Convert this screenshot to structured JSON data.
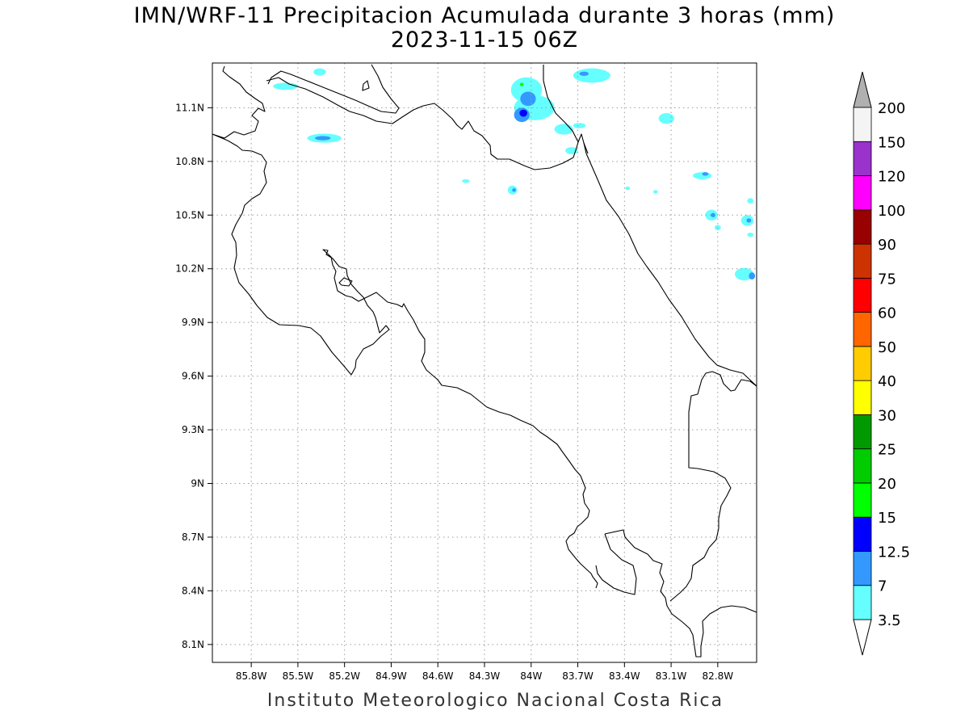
{
  "map": {
    "title_line1": "IMN/WRF-11 Precipitacion Acumulada durante 3 horas (mm)",
    "title_line2": "2023-11-15 06Z",
    "footer": "Instituto Meteorologico Nacional Costa Rica",
    "region": "Costa Rica",
    "lon_range": [
      -86.05,
      -82.55
    ],
    "lat_range": [
      8.0,
      11.35
    ],
    "gridlines": true,
    "lon_ticks": [
      {
        "value": -85.8,
        "label": "85.8W"
      },
      {
        "value": -85.5,
        "label": "85.5W"
      },
      {
        "value": -85.2,
        "label": "85.2W"
      },
      {
        "value": -84.9,
        "label": "84.9W"
      },
      {
        "value": -84.6,
        "label": "84.6W"
      },
      {
        "value": -84.3,
        "label": "84.3W"
      },
      {
        "value": -84.0,
        "label": "84W"
      },
      {
        "value": -83.7,
        "label": "83.7W"
      },
      {
        "value": -83.4,
        "label": "83.4W"
      },
      {
        "value": -83.1,
        "label": "83.1W"
      },
      {
        "value": -82.8,
        "label": "82.8W"
      }
    ],
    "lat_ticks": [
      {
        "value": 11.1,
        "label": "11.1N"
      },
      {
        "value": 10.8,
        "label": "10.8N"
      },
      {
        "value": 10.5,
        "label": "10.5N"
      },
      {
        "value": 10.2,
        "label": "10.2N"
      },
      {
        "value": 9.9,
        "label": "9.9N"
      },
      {
        "value": 9.6,
        "label": "9.6N"
      },
      {
        "value": 9.3,
        "label": "9.3N"
      },
      {
        "value": 9.0,
        "label": "9N"
      },
      {
        "value": 8.7,
        "label": "8.7N"
      },
      {
        "value": 8.4,
        "label": "8.4N"
      },
      {
        "value": 8.1,
        "label": "8.1N"
      }
    ]
  },
  "colorbar": {
    "labels": [
      "3.5",
      "7",
      "12.5",
      "15",
      "20",
      "25",
      "30",
      "40",
      "50",
      "60",
      "75",
      "90",
      "100",
      "120",
      "150",
      "200"
    ],
    "colors": [
      "#66ffff",
      "#3399ff",
      "#0000ff",
      "#00ff00",
      "#00cc00",
      "#009900",
      "#ffff00",
      "#ffcc00",
      "#ff6600",
      "#ff0000",
      "#cc3300",
      "#990000",
      "#ff00ff",
      "#9933cc",
      "#f4f4f4"
    ],
    "over_color": "#b0b0b0",
    "under_color": "#ffffff"
  },
  "precip_cells": [
    {
      "lon": -84.03,
      "lat": 11.2,
      "rx": 0.1,
      "ry": 0.07,
      "level": "3.5"
    },
    {
      "lon": -83.98,
      "lat": 11.1,
      "rx": 0.13,
      "ry": 0.07,
      "level": "3.5"
    },
    {
      "lon": -84.02,
      "lat": 11.15,
      "rx": 0.05,
      "ry": 0.04,
      "level": "7"
    },
    {
      "lon": -84.06,
      "lat": 11.06,
      "rx": 0.05,
      "ry": 0.04,
      "level": "7"
    },
    {
      "lon": -84.05,
      "lat": 11.07,
      "rx": 0.025,
      "ry": 0.02,
      "level": "12.5"
    },
    {
      "lon": -84.06,
      "lat": 11.23,
      "rx": 0.012,
      "ry": 0.01,
      "level": "15"
    },
    {
      "lon": -85.33,
      "lat": 10.93,
      "rx": 0.11,
      "ry": 0.025,
      "level": "3.5"
    },
    {
      "lon": -85.34,
      "lat": 10.93,
      "rx": 0.05,
      "ry": 0.012,
      "level": "7"
    },
    {
      "lon": -85.58,
      "lat": 11.22,
      "rx": 0.08,
      "ry": 0.02,
      "level": "3.5"
    },
    {
      "lon": -85.36,
      "lat": 11.3,
      "rx": 0.04,
      "ry": 0.02,
      "level": "3.5"
    },
    {
      "lon": -83.61,
      "lat": 11.28,
      "rx": 0.12,
      "ry": 0.04,
      "level": "3.5"
    },
    {
      "lon": -83.66,
      "lat": 11.29,
      "rx": 0.03,
      "ry": 0.012,
      "level": "7"
    },
    {
      "lon": -83.79,
      "lat": 10.98,
      "rx": 0.06,
      "ry": 0.03,
      "level": "3.5"
    },
    {
      "lon": -83.74,
      "lat": 10.86,
      "rx": 0.04,
      "ry": 0.02,
      "level": "3.5"
    },
    {
      "lon": -83.69,
      "lat": 11.0,
      "rx": 0.04,
      "ry": 0.015,
      "level": "3.5"
    },
    {
      "lon": -83.13,
      "lat": 11.04,
      "rx": 0.05,
      "ry": 0.03,
      "level": "3.5"
    },
    {
      "lon": -84.12,
      "lat": 10.64,
      "rx": 0.03,
      "ry": 0.025,
      "level": "3.5"
    },
    {
      "lon": -84.11,
      "lat": 10.64,
      "rx": 0.012,
      "ry": 0.01,
      "level": "7"
    },
    {
      "lon": -84.42,
      "lat": 10.69,
      "rx": 0.025,
      "ry": 0.01,
      "level": "3.5"
    },
    {
      "lon": -82.9,
      "lat": 10.72,
      "rx": 0.06,
      "ry": 0.02,
      "level": "3.5"
    },
    {
      "lon": -82.88,
      "lat": 10.73,
      "rx": 0.02,
      "ry": 0.01,
      "level": "7"
    },
    {
      "lon": -82.84,
      "lat": 10.5,
      "rx": 0.04,
      "ry": 0.03,
      "level": "3.5"
    },
    {
      "lon": -82.83,
      "lat": 10.5,
      "rx": 0.015,
      "ry": 0.012,
      "level": "7"
    },
    {
      "lon": -82.8,
      "lat": 10.43,
      "rx": 0.02,
      "ry": 0.015,
      "level": "3.5"
    },
    {
      "lon": -82.61,
      "lat": 10.47,
      "rx": 0.04,
      "ry": 0.03,
      "level": "3.5"
    },
    {
      "lon": -82.6,
      "lat": 10.47,
      "rx": 0.015,
      "ry": 0.012,
      "level": "7"
    },
    {
      "lon": -82.63,
      "lat": 10.17,
      "rx": 0.06,
      "ry": 0.035,
      "level": "3.5"
    },
    {
      "lon": -82.58,
      "lat": 10.16,
      "rx": 0.02,
      "ry": 0.02,
      "level": "7"
    },
    {
      "lon": -82.59,
      "lat": 10.58,
      "rx": 0.02,
      "ry": 0.015,
      "level": "3.5"
    },
    {
      "lon": -83.38,
      "lat": 10.65,
      "rx": 0.015,
      "ry": 0.01,
      "level": "3.5"
    },
    {
      "lon": -83.2,
      "lat": 10.63,
      "rx": 0.015,
      "ry": 0.01,
      "level": "3.5"
    },
    {
      "lon": -82.59,
      "lat": 10.39,
      "rx": 0.02,
      "ry": 0.012,
      "level": "3.5"
    }
  ]
}
